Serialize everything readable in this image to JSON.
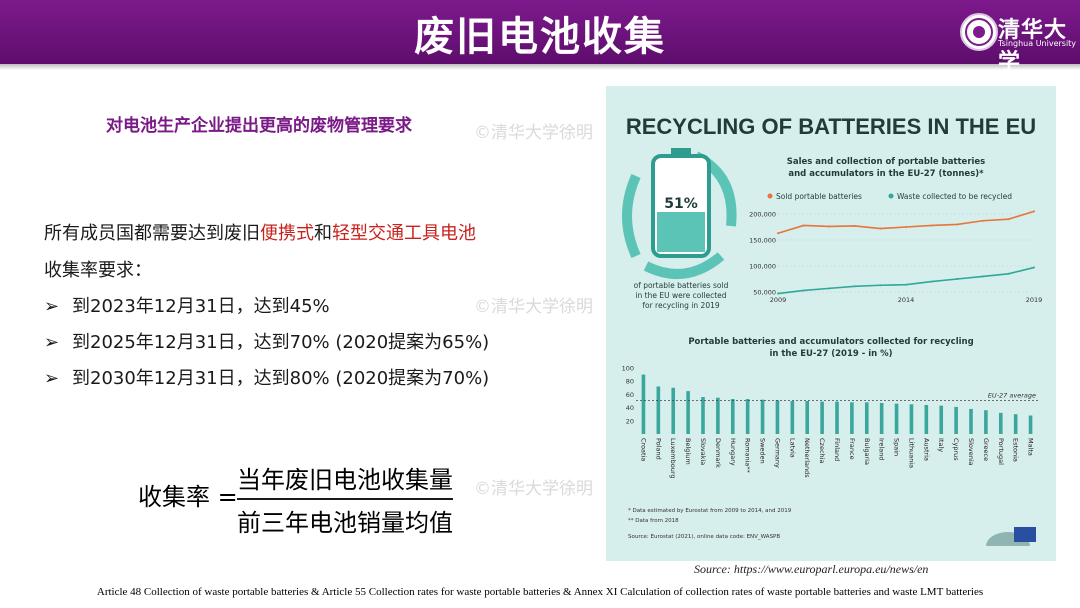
{
  "header": {
    "title": "废旧电池收集",
    "logo_name": "清华大学",
    "logo_sub": "Tsinghua University"
  },
  "subtitle": "对电池生产企业提出更高的废物管理要求",
  "watermark": "©清华大学徐明",
  "intro": {
    "part1": "所有成员国都需要达到废旧",
    "red1": "便携式",
    "part2": "和",
    "red2": "轻型交通工具电池",
    "line2": "收集率要求："
  },
  "bullets": [
    "到2023年12月31日，达到45%",
    "到2025年12月31日，达到70% (2020提案为65%)",
    "到2030年12月31日，达到80% (2020提案为70%)"
  ],
  "formula": {
    "label": "收集率 =",
    "numerator": "当年废旧电池收集量",
    "denominator": "前三年电池销量均值"
  },
  "infographic": {
    "title": "RECYCLING OF BATTERIES IN THE EU",
    "big_percent": "51%",
    "big_caption": [
      "of portable batteries sold",
      "in the EU were collected",
      "for recycling in 2019"
    ],
    "line_title": [
      "Sales and collection of portable batteries",
      "and accumulators in the EU-27 (tonnes)*"
    ],
    "legend": [
      "Sold portable batteries",
      "Waste collected to be recycled"
    ],
    "bar_title": [
      "Portable batteries and accumulators collected for recycling",
      "in the EU-27 (2019 - in %)"
    ],
    "eu_avg_label": "EU-27 average",
    "notes": [
      "* Data estimated by Eurostat from 2009 to 2014, and 2019",
      "** Data from 2018",
      "Source: Eurostat (2021), online data code: ENV_WASPB"
    ]
  },
  "chart_data": [
    {
      "type": "line",
      "x": [
        2009,
        2010,
        2011,
        2012,
        2013,
        2014,
        2015,
        2016,
        2017,
        2018,
        2019
      ],
      "x_tick_labels": [
        "2009",
        "2014",
        "2019"
      ],
      "y_tick_labels": [
        "200,000",
        "150,000",
        "100,000",
        "50,000"
      ],
      "ylim": [
        50000,
        200000
      ],
      "series": [
        {
          "name": "Sold portable batteries",
          "color": "#e8743b",
          "values": [
            163000,
            178000,
            176000,
            177000,
            172000,
            175000,
            178000,
            180000,
            187000,
            190000,
            205000
          ]
        },
        {
          "name": "Waste collected to be recycled",
          "color": "#2fa89a",
          "values": [
            47000,
            53000,
            57000,
            61000,
            63000,
            64000,
            70000,
            75000,
            80000,
            85000,
            97000
          ]
        }
      ]
    },
    {
      "type": "bar",
      "color": "#3aa79d",
      "ylim": [
        0,
        100
      ],
      "y_tick_labels": [
        "100",
        "80",
        "60",
        "40",
        "20"
      ],
      "eu_average": 51,
      "categories": [
        "Croatia",
        "Poland",
        "Luxembourg",
        "Belgium",
        "Slovakia",
        "Denmark",
        "Hungary",
        "Romania**",
        "Sweden",
        "Germany",
        "Latvia",
        "Netherlands",
        "Czechia",
        "Finland",
        "France",
        "Bulgaria",
        "Ireland",
        "Spain",
        "Lithuania",
        "Austria",
        "Italy",
        "Cyprus",
        "Slovenia",
        "Greece",
        "Portugal",
        "Estonia",
        "Malta"
      ],
      "values": [
        90,
        72,
        70,
        65,
        56,
        55,
        53,
        53,
        52,
        51,
        50,
        50,
        49,
        49,
        48,
        48,
        47,
        46,
        45,
        44,
        43,
        41,
        38,
        36,
        32,
        30,
        28
      ]
    }
  ],
  "source": "Source:  https://www.europarl.europa.eu/news/en",
  "footer": "Article 48 Collection  of waste portable batteries & Article 55 Collection  rates for waste portable batteries & Annex XI Calculation  of collection  rates of waste portable batteries and waste LMT batteries"
}
